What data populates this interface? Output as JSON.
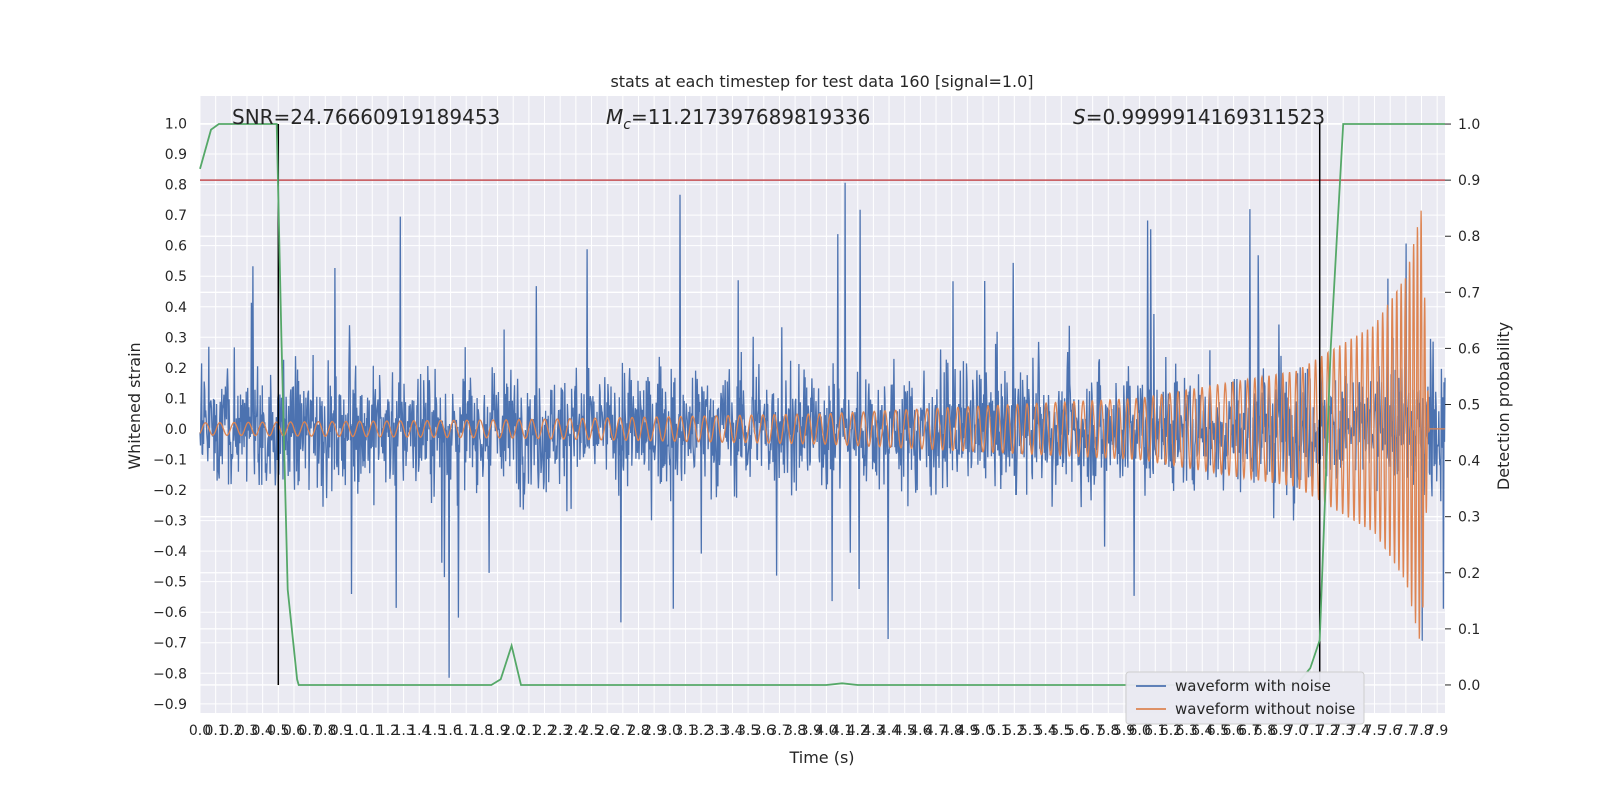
{
  "chart_data": {
    "type": "line",
    "title": "stats at each timestep for test data 160 [signal=1.0]",
    "xlabel": "Time (s)",
    "ylabel": "Whitened strain",
    "y2label": "Detection probability",
    "xlim": [
      0.0,
      7.95
    ],
    "ylim": [
      -0.93,
      1.09
    ],
    "y2lim": [
      -0.05,
      1.05
    ],
    "xticks": [
      "0.0",
      "0.1",
      "0.2",
      "0.3",
      "0.4",
      "0.5",
      "0.6",
      "0.7",
      "0.8",
      "0.9",
      "1.0",
      "1.1",
      "1.2",
      "1.3",
      "1.4",
      "1.5",
      "1.6",
      "1.7",
      "1.8",
      "1.9",
      "2.0",
      "2.1",
      "2.2",
      "2.3",
      "2.4",
      "2.5",
      "2.6",
      "2.7",
      "2.8",
      "2.9",
      "3.0",
      "3.1",
      "3.2",
      "3.3",
      "3.4",
      "3.5",
      "3.6",
      "3.7",
      "3.8",
      "3.9",
      "4.0",
      "4.1",
      "4.2",
      "4.3",
      "4.4",
      "4.5",
      "4.6",
      "4.7",
      "4.8",
      "4.9",
      "5.0",
      "5.1",
      "5.2",
      "5.3",
      "5.4",
      "5.5",
      "5.6",
      "5.7",
      "5.8",
      "5.9",
      "6.0",
      "6.1",
      "6.2",
      "6.3",
      "6.4",
      "6.5",
      "6.6",
      "6.7",
      "6.8",
      "6.9",
      "7.0",
      "7.1",
      "7.2",
      "7.3",
      "7.4",
      "7.5",
      "7.6",
      "7.7",
      "7.8",
      "7.9"
    ],
    "yticks": [
      "−0.9",
      "−0.8",
      "−0.7",
      "−0.6",
      "−0.5",
      "−0.4",
      "−0.3",
      "−0.2",
      "−0.1",
      "0.0",
      "0.1",
      "0.2",
      "0.3",
      "0.4",
      "0.5",
      "0.6",
      "0.7",
      "0.8",
      "0.9",
      "1.0"
    ],
    "y2ticks": [
      "0.0",
      "0.1",
      "0.2",
      "0.3",
      "0.4",
      "0.5",
      "0.6",
      "0.7",
      "0.8",
      "0.9",
      "1.0"
    ],
    "annotations": {
      "snr": "SNR=24.76660919189453",
      "mc_symbol": "M",
      "mc_sub": "c",
      "mc_value": "=11.217397689819336",
      "s_symbol": "S",
      "s_value": "=0.9999914169311523"
    },
    "threshold_y2": 0.9,
    "vertical_lines_x": [
      0.5,
      7.15
    ],
    "series": [
      {
        "name": "waveform with noise",
        "color": "#4c72b0",
        "description": "noisy whitened strain, approx band -0.5 to 0.5 with spikes to about +0.9 and -0.83",
        "envelope": {
          "typical_max": 0.45,
          "typical_min": -0.5,
          "peak_max": 0.9,
          "peak_min": -0.83
        }
      },
      {
        "name": "waveform without noise",
        "color": "#dd8452",
        "description": "chirp signal, amplitude about 0.02 at t=0 rising to about 0.72 near t=7.8, ending at t=7.85",
        "amplitude_points": [
          [
            0.0,
            0.02
          ],
          [
            2.0,
            0.03
          ],
          [
            4.0,
            0.05
          ],
          [
            6.0,
            0.1
          ],
          [
            7.0,
            0.19
          ],
          [
            7.5,
            0.34
          ],
          [
            7.7,
            0.5
          ],
          [
            7.8,
            0.72
          ],
          [
            7.85,
            0.0
          ]
        ]
      },
      {
        "name": "detection probability",
        "color": "#55a868",
        "axis": "right",
        "x": [
          0.0,
          0.07,
          0.12,
          0.2,
          0.3,
          0.4,
          0.49,
          0.52,
          0.56,
          0.62,
          0.63,
          1.0,
          1.5,
          1.86,
          1.92,
          1.99,
          2.05,
          2.5,
          3.0,
          4.0,
          4.1,
          4.2,
          5.0,
          5.5,
          5.85,
          6.5,
          7.0,
          7.09,
          7.15,
          7.22,
          7.3,
          7.4,
          7.6,
          7.95
        ],
        "y": [
          0.92,
          0.99,
          1.0,
          1.0,
          1.0,
          1.0,
          1.0,
          0.62,
          0.17,
          0.01,
          0.0,
          0.0,
          0.0,
          0.0,
          0.01,
          0.07,
          0.0,
          0.0,
          0.0,
          0.0,
          0.003,
          0.0,
          0.0,
          0.0,
          0.0,
          0.0,
          0.0,
          0.03,
          0.08,
          0.6,
          1.0,
          1.0,
          1.0,
          1.0
        ]
      }
    ],
    "legend": {
      "position": "bottom-right",
      "entries": [
        {
          "label": "waveform with noise",
          "color": "#4c72b0"
        },
        {
          "label": "waveform without noise",
          "color": "#dd8452"
        }
      ]
    }
  }
}
